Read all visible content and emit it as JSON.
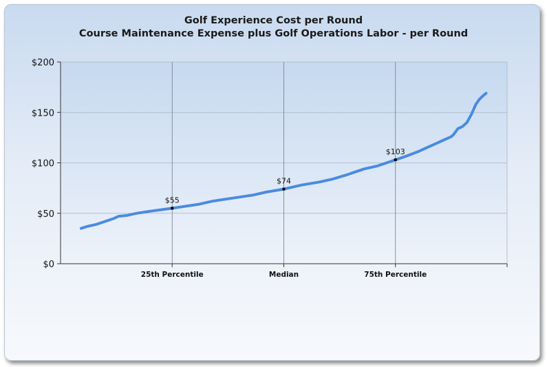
{
  "chart_data": {
    "type": "line",
    "title": "Golf Experience Cost per Round",
    "subtitle": "Course Maintenance Expense plus Golf Operations Labor -  per Round",
    "ylim": [
      0,
      200
    ],
    "y_ticks": [
      "$0",
      "$50",
      "$100",
      "$150",
      "$200"
    ],
    "y_tick_values": [
      0,
      50,
      100,
      150,
      200
    ],
    "x_range": [
      0,
      100
    ],
    "x_tick_labels": [
      {
        "x": 25,
        "label": "25th Percentile"
      },
      {
        "x": 50,
        "label": "Median"
      },
      {
        "x": 75,
        "label": "75th Percentile"
      }
    ],
    "grid": true,
    "line_color": "#4a8be0",
    "series": [
      {
        "points": [
          [
            4.6,
            35
          ],
          [
            6,
            37
          ],
          [
            8,
            39
          ],
          [
            10,
            42
          ],
          [
            12,
            45
          ],
          [
            13,
            47
          ],
          [
            15,
            48
          ],
          [
            17,
            50
          ],
          [
            20,
            52
          ],
          [
            22.5,
            53.5
          ],
          [
            25,
            55
          ],
          [
            28,
            57
          ],
          [
            31,
            59
          ],
          [
            34,
            62
          ],
          [
            37,
            64
          ],
          [
            40,
            66
          ],
          [
            43,
            68
          ],
          [
            46,
            71
          ],
          [
            50,
            74
          ],
          [
            54,
            78
          ],
          [
            58,
            81
          ],
          [
            61,
            84
          ],
          [
            64,
            88
          ],
          [
            66,
            91
          ],
          [
            68,
            94
          ],
          [
            71,
            97
          ],
          [
            73,
            100
          ],
          [
            75,
            103
          ],
          [
            77,
            106
          ],
          [
            80,
            111
          ],
          [
            82,
            115
          ],
          [
            84,
            119
          ],
          [
            86,
            123
          ],
          [
            87.5,
            126
          ],
          [
            88,
            128
          ],
          [
            89,
            134
          ],
          [
            90,
            136
          ],
          [
            91,
            140
          ],
          [
            92,
            148
          ],
          [
            92.5,
            153
          ],
          [
            93,
            158
          ],
          [
            93.8,
            163
          ],
          [
            94.5,
            166
          ],
          [
            95.3,
            169
          ]
        ]
      }
    ],
    "markers": [
      {
        "x": 25,
        "y": 55,
        "label": "$55"
      },
      {
        "x": 50,
        "y": 74,
        "label": "$74"
      },
      {
        "x": 75,
        "y": 103,
        "label": "$103"
      }
    ]
  }
}
